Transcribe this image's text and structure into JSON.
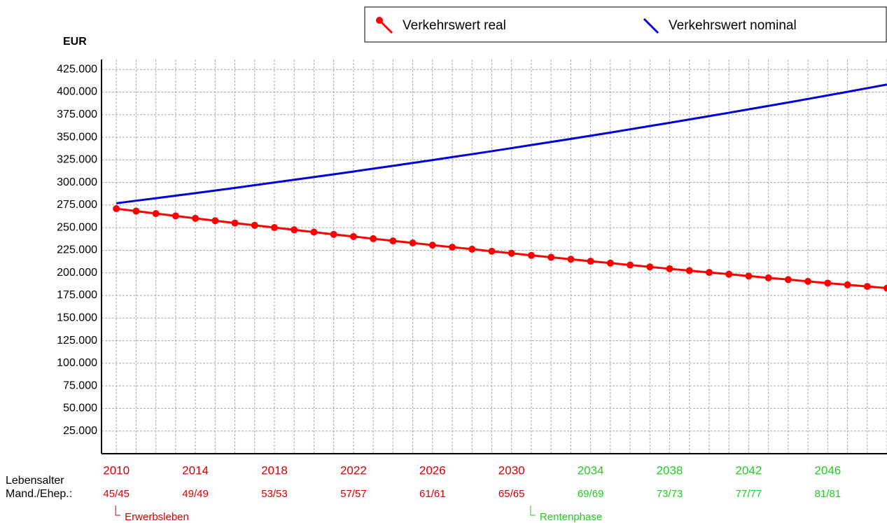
{
  "chart_data": {
    "type": "line",
    "y_unit": "EUR",
    "x": [
      2010,
      2011,
      2012,
      2013,
      2014,
      2015,
      2016,
      2017,
      2018,
      2019,
      2020,
      2021,
      2022,
      2023,
      2024,
      2025,
      2026,
      2027,
      2028,
      2029,
      2030,
      2031,
      2032,
      2033,
      2034,
      2035,
      2036,
      2037,
      2038,
      2039,
      2040,
      2041,
      2042,
      2043,
      2044,
      2045,
      2046,
      2047,
      2048,
      2049
    ],
    "xlim": [
      2009.25,
      2049
    ],
    "xticks": [
      2010,
      2014,
      2018,
      2022,
      2026,
      2030,
      2034,
      2038,
      2042,
      2046
    ],
    "age_row_label": [
      "Lebensalter",
      "Mand./Ehep.:"
    ],
    "age_labels": [
      "45/45",
      "49/49",
      "53/53",
      "57/57",
      "61/61",
      "65/65",
      "69/69",
      "73/73",
      "77/77",
      "81/81"
    ],
    "phases": [
      {
        "label": "Erwerbsleben",
        "color": "#d40000",
        "start": 2010
      },
      {
        "label": "Rentenphase",
        "color": "#22cc22",
        "start": 2031
      }
    ],
    "ylim": [
      0,
      436000
    ],
    "yticks": [
      {
        "value": 25000,
        "label": "25.000"
      },
      {
        "value": 50000,
        "label": "50.000"
      },
      {
        "value": 75000,
        "label": "75.000"
      },
      {
        "value": 100000,
        "label": "100.000"
      },
      {
        "value": 125000,
        "label": "125.000"
      },
      {
        "value": 150000,
        "label": "150.000"
      },
      {
        "value": 175000,
        "label": "175.000"
      },
      {
        "value": 200000,
        "label": "200.000"
      },
      {
        "value": 225000,
        "label": "225.000"
      },
      {
        "value": 250000,
        "label": "250.000"
      },
      {
        "value": 275000,
        "label": "275.000"
      },
      {
        "value": 300000,
        "label": "300.000"
      },
      {
        "value": 325000,
        "label": "325.000"
      },
      {
        "value": 350000,
        "label": "350.000"
      },
      {
        "value": 375000,
        "label": "375.000"
      },
      {
        "value": 400000,
        "label": "400.000"
      },
      {
        "value": 425000,
        "label": "425.000"
      }
    ],
    "grid": true,
    "legend": "top-right",
    "series": [
      {
        "name": "Verkehrswert real",
        "color": "#ff0000",
        "markers": true,
        "values": [
          271000,
          268300,
          265600,
          263000,
          260300,
          257700,
          255100,
          252600,
          250100,
          247600,
          245100,
          242600,
          240200,
          237800,
          235400,
          233100,
          230700,
          228400,
          226200,
          223900,
          221700,
          219400,
          217200,
          215100,
          212900,
          210800,
          208700,
          206600,
          204500,
          202500,
          200500,
          198500,
          196500,
          194500,
          192600,
          190600,
          188700,
          186800,
          185000,
          183100
        ]
      },
      {
        "name": "Verkehrswert nominal",
        "color": "#0000dd",
        "markers": false,
        "values": [
          277000,
          279800,
          282600,
          285400,
          288200,
          291100,
          294000,
          297000,
          300000,
          303000,
          306000,
          309000,
          312100,
          315300,
          318400,
          321600,
          324800,
          328100,
          331300,
          334600,
          338000,
          341400,
          344800,
          348200,
          351700,
          355200,
          358800,
          362400,
          366000,
          369700,
          373400,
          377100,
          380900,
          384700,
          388500,
          392400,
          396300,
          400300,
          404300,
          408300
        ]
      }
    ]
  }
}
